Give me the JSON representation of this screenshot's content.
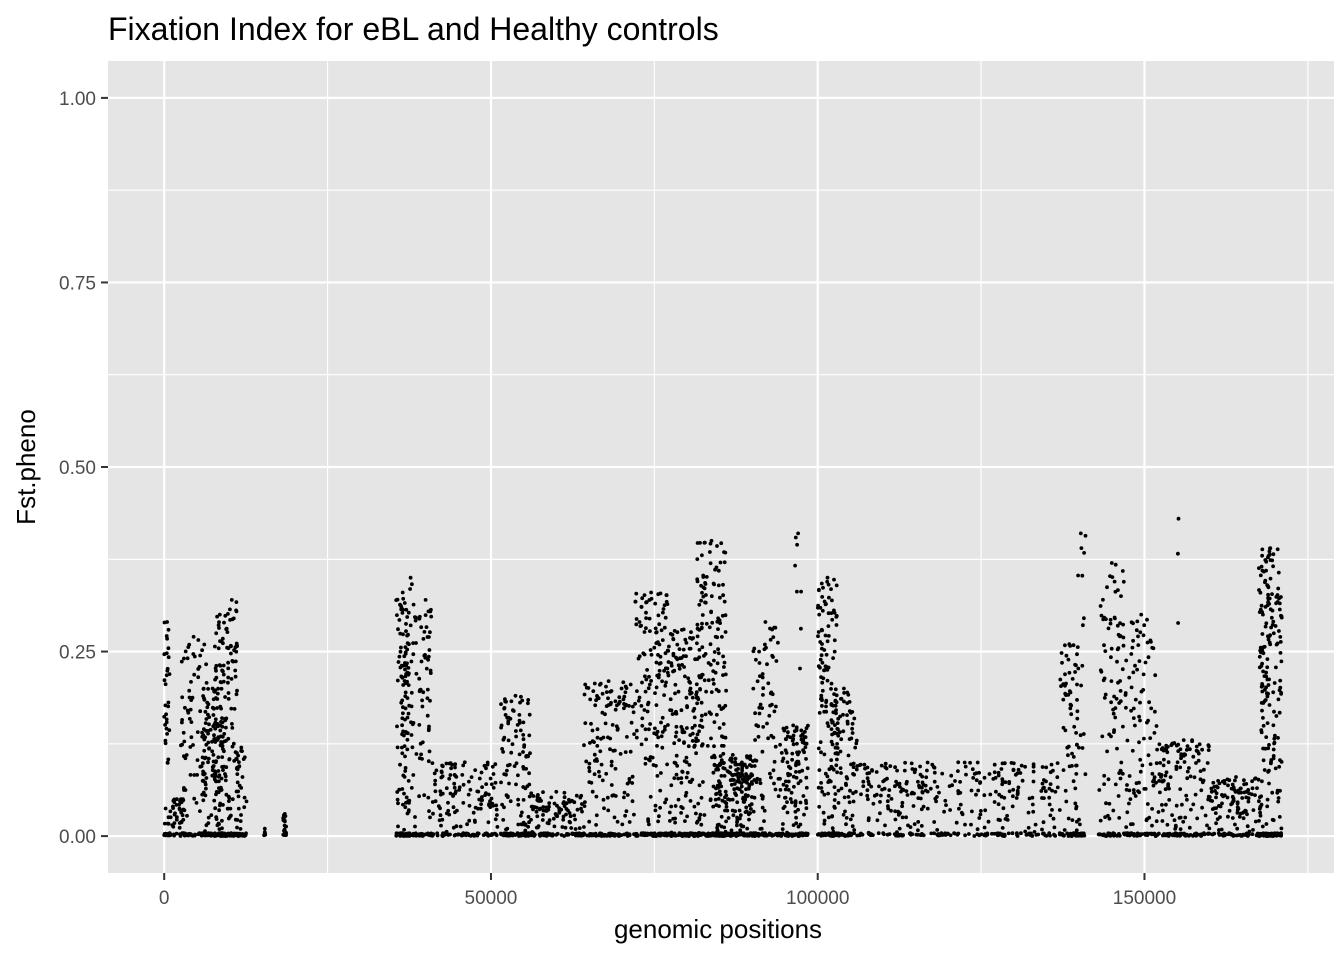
{
  "chart_data": {
    "type": "scatter",
    "title": "Fixation Index for eBL and Healthy controls",
    "xlabel": "genomic positions",
    "ylabel": "Fst.pheno",
    "xlim": [
      -8600,
      179000
    ],
    "ylim": [
      -0.05,
      1.05
    ],
    "x_ticks": [
      0,
      50000,
      100000,
      150000
    ],
    "x_tick_labels": [
      "0",
      "50000",
      "100000",
      "150000"
    ],
    "y_ticks": [
      0.0,
      0.25,
      0.5,
      0.75,
      1.0
    ],
    "y_tick_labels": [
      "0.00",
      "0.25",
      "0.50",
      "0.75",
      "1.00"
    ],
    "grid": true,
    "legend": "none",
    "point_color": "#000000",
    "panel_color": "#e5e5e5",
    "clusters": [
      {
        "x": [
          0,
          900
        ],
        "y_max": 0.29,
        "n": 55
      },
      {
        "x": [
          900,
          3000
        ],
        "y_max": 0.05,
        "n": 40
      },
      {
        "x": [
          2500,
          6500
        ],
        "y_max": 0.27,
        "n": 110
      },
      {
        "x": [
          5800,
          9000
        ],
        "y_max": 0.2,
        "n": 140
      },
      {
        "x": [
          7500,
          9500
        ],
        "y_max": 0.3,
        "n": 110
      },
      {
        "x": [
          9500,
          11200
        ],
        "y_max": 0.32,
        "n": 90
      },
      {
        "x": [
          11000,
          12600
        ],
        "y_max": 0.12,
        "n": 45
      },
      {
        "x": [
          15200,
          15600
        ],
        "y_max": 0.01,
        "n": 4
      },
      {
        "x": [
          18200,
          18700
        ],
        "y_max": 0.03,
        "n": 22
      },
      {
        "x": [
          35500,
          37500
        ],
        "y_max": 0.33,
        "n": 130
      },
      {
        "x": [
          36800,
          38600
        ],
        "y_max": 0.35,
        "n": 60
      },
      {
        "x": [
          39000,
          41000
        ],
        "y_max": 0.32,
        "n": 80
      },
      {
        "x": [
          41000,
          51000
        ],
        "y_max": 0.1,
        "n": 170
      },
      {
        "x": [
          51500,
          56000
        ],
        "y_max": 0.19,
        "n": 140
      },
      {
        "x": [
          56000,
          64000
        ],
        "y_max": 0.06,
        "n": 140
      },
      {
        "x": [
          64000,
          72000
        ],
        "y_max": 0.21,
        "n": 190
      },
      {
        "x": [
          72000,
          77000
        ],
        "y_max": 0.33,
        "n": 200
      },
      {
        "x": [
          77000,
          82000
        ],
        "y_max": 0.28,
        "n": 210
      },
      {
        "x": [
          81500,
          86000
        ],
        "y_max": 0.4,
        "n": 220
      },
      {
        "x": [
          84000,
          90000
        ],
        "y_max": 0.11,
        "n": 260
      },
      {
        "x": [
          90000,
          94000
        ],
        "y_max": 0.29,
        "n": 120
      },
      {
        "x": [
          94000,
          98500
        ],
        "y_max": 0.15,
        "n": 160
      },
      {
        "x": [
          96500,
          97500
        ],
        "y_max": 0.41,
        "n": 14
      },
      {
        "x": [
          100000,
          103000
        ],
        "y_max": 0.35,
        "n": 160
      },
      {
        "x": [
          102000,
          106000
        ],
        "y_max": 0.2,
        "n": 130
      },
      {
        "x": [
          106000,
          137000
        ],
        "y_max": 0.1,
        "n": 380
      },
      {
        "x": [
          137000,
          140000
        ],
        "y_max": 0.26,
        "n": 90
      },
      {
        "x": [
          139500,
          141000
        ],
        "y_max": 0.41,
        "n": 28
      },
      {
        "x": [
          143000,
          147000
        ],
        "y_max": 0.37,
        "n": 110
      },
      {
        "x": [
          147000,
          152000
        ],
        "y_max": 0.3,
        "n": 130
      },
      {
        "x": [
          152000,
          160000
        ],
        "y_max": 0.13,
        "n": 170
      },
      {
        "x": [
          154800,
          155600
        ],
        "y_max": 0.43,
        "n": 8
      },
      {
        "x": [
          160000,
          168000
        ],
        "y_max": 0.08,
        "n": 150
      },
      {
        "x": [
          167500,
          171000
        ],
        "y_max": 0.39,
        "n": 240
      }
    ]
  }
}
